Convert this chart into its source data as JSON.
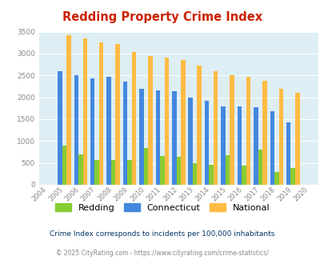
{
  "title": "Redding Property Crime Index",
  "years": [
    2004,
    2005,
    2006,
    2007,
    2008,
    2009,
    2010,
    2011,
    2012,
    2013,
    2014,
    2015,
    2016,
    2017,
    2018,
    2019,
    2020
  ],
  "redding": [
    0,
    900,
    700,
    570,
    570,
    560,
    840,
    660,
    640,
    500,
    450,
    670,
    430,
    800,
    290,
    390,
    0
  ],
  "connecticut": [
    0,
    2590,
    2510,
    2440,
    2470,
    2360,
    2190,
    2160,
    2140,
    2000,
    1920,
    1800,
    1800,
    1770,
    1680,
    1420,
    0
  ],
  "national": [
    0,
    3420,
    3340,
    3260,
    3210,
    3040,
    2950,
    2910,
    2860,
    2730,
    2600,
    2500,
    2470,
    2380,
    2200,
    2110,
    0
  ],
  "redding_color": "#88cc33",
  "connecticut_color": "#4488dd",
  "national_color": "#ffbb44",
  "bg_color": "#ddeef5",
  "title_color": "#cc2200",
  "ylim": [
    0,
    3500
  ],
  "yticks": [
    0,
    500,
    1000,
    1500,
    2000,
    2500,
    3000,
    3500
  ],
  "note_text": "Crime Index corresponds to incidents per 100,000 inhabitants",
  "footer": "© 2025 CityRating.com - https://www.cityrating.com/crime-statistics/",
  "bar_width": 0.27,
  "legend_labels": [
    "Redding",
    "Connecticut",
    "National"
  ],
  "note_color": "#003366",
  "footer_color": "#888888",
  "grid_color": "#ffffff",
  "tick_color": "#888888"
}
